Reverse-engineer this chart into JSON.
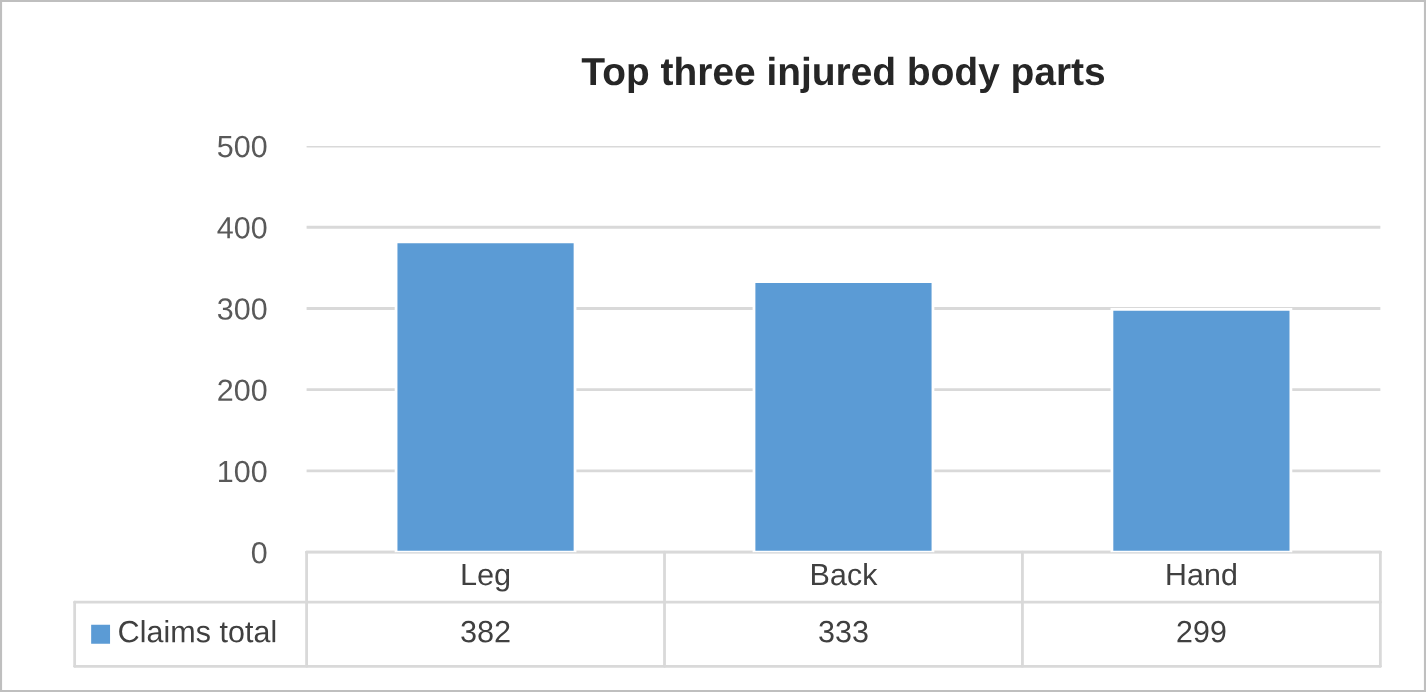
{
  "chart_data": {
    "type": "bar",
    "title": "Top three injured body parts",
    "categories": [
      "Leg",
      "Back",
      "Hand"
    ],
    "series": [
      {
        "name": "Claims total",
        "color": "#5b9bd5",
        "values": [
          382,
          333,
          299
        ]
      }
    ],
    "ylim": [
      0,
      500
    ],
    "yticks": [
      0,
      100,
      200,
      300,
      400,
      500
    ],
    "grid": "y",
    "data_labels": true,
    "legend": "bottom"
  }
}
